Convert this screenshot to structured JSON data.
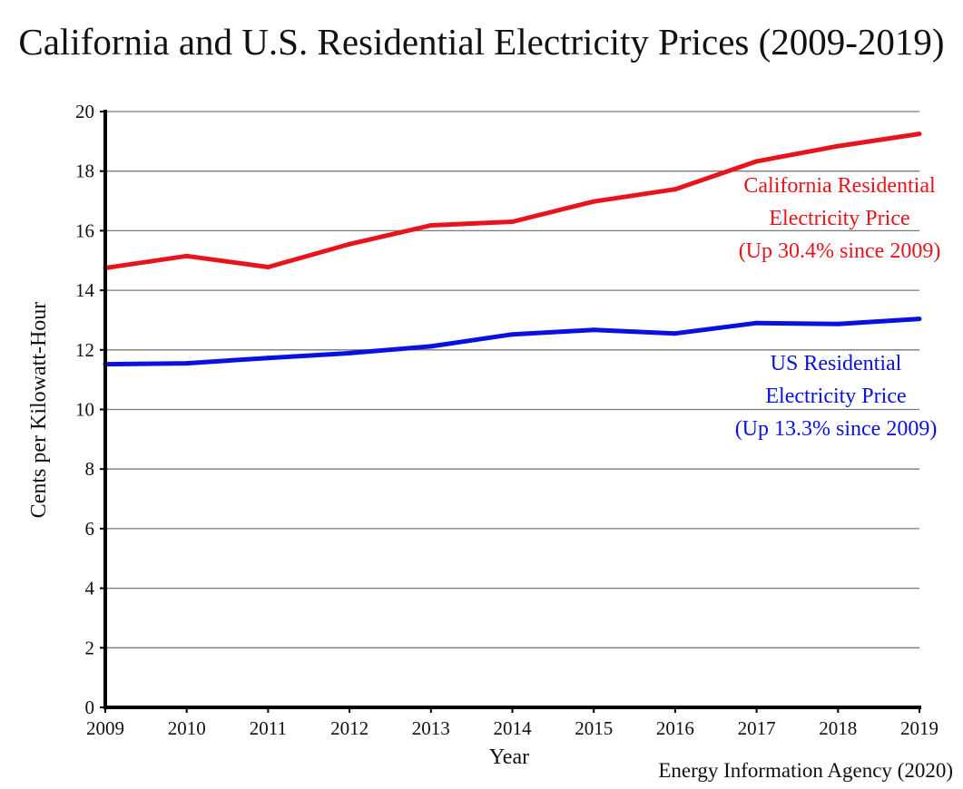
{
  "chart_data": {
    "type": "line",
    "title": "California and U.S. Residential Electricity Prices (2009-2019)",
    "xlabel": "Year",
    "ylabel": "Cents per Kilowatt-Hour",
    "x": [
      2009,
      2010,
      2011,
      2012,
      2013,
      2014,
      2015,
      2016,
      2017,
      2018,
      2019
    ],
    "ylim": [
      0,
      20
    ],
    "yticks": [
      0,
      2,
      4,
      6,
      8,
      10,
      12,
      14,
      16,
      18,
      20
    ],
    "grid": true,
    "series": [
      {
        "id": "california",
        "color": "#e8141b",
        "values": [
          14.75,
          15.15,
          14.78,
          15.55,
          16.18,
          16.3,
          16.98,
          17.39,
          18.33,
          18.84,
          19.25
        ],
        "annotation": [
          "California Residential",
          "Electricity Price",
          "(Up 30.4% since 2009)"
        ]
      },
      {
        "id": "us",
        "color": "#0a10e0",
        "values": [
          11.52,
          11.55,
          11.73,
          11.89,
          12.12,
          12.52,
          12.67,
          12.55,
          12.9,
          12.87,
          13.04
        ],
        "annotation": [
          "US Residential",
          "Electricity Price",
          "(Up 13.3% since 2009)"
        ]
      }
    ],
    "source": "Energy Information Agency (2020)"
  }
}
